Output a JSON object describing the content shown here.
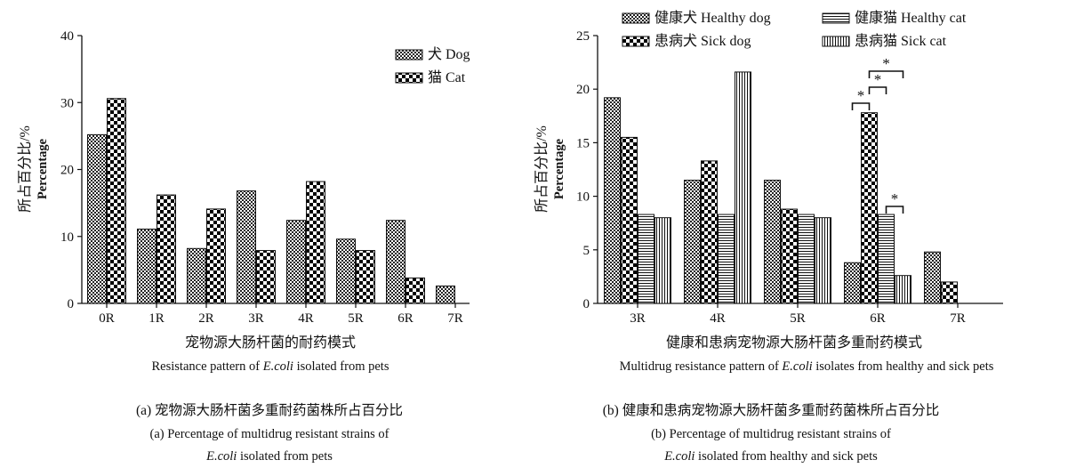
{
  "chart_data": [
    {
      "type": "bar",
      "ylabel_cn": "所占百分比/%",
      "ylabel_en": "Percentage",
      "ylim": [
        0,
        40
      ],
      "yticks": [
        "0",
        "10",
        "20",
        "30",
        "40"
      ],
      "categories": [
        "0R",
        "1R",
        "2R",
        "3R",
        "4R",
        "5R",
        "6R",
        "7R"
      ],
      "series": [
        {
          "name": "犬 Dog",
          "pattern": "checker-fine",
          "values": [
            25.2,
            11.1,
            8.2,
            16.8,
            12.4,
            9.6,
            12.4,
            2.6
          ]
        },
        {
          "name": "猫 Cat",
          "pattern": "checker-bold",
          "values": [
            30.6,
            16.2,
            14.1,
            7.9,
            18.2,
            7.9,
            3.8,
            null
          ]
        }
      ],
      "legend_position": "top-right",
      "xlabel_cn": "宠物源大肠杆菌的耐药模式",
      "xlabel_en_pre": "Resistance pattern of ",
      "xlabel_en_italic": "E.coli",
      "xlabel_en_post": " isolated from pets",
      "caption_cn": "(a) 宠物源大肠杆菌多重耐药菌株所占百分比",
      "caption_en_1": "(a) Percentage of multidrug resistant strains of",
      "caption_en_2_italic": "E.coli",
      "caption_en_2_post": " isolated from pets"
    },
    {
      "type": "bar",
      "ylabel_cn": "所占百分比/%",
      "ylabel_en": "Percentage",
      "ylim": [
        0,
        25
      ],
      "yticks": [
        "0",
        "5",
        "10",
        "15",
        "20",
        "25"
      ],
      "categories": [
        "3R",
        "4R",
        "5R",
        "6R",
        "7R"
      ],
      "series": [
        {
          "name": "健康犬 Healthy dog",
          "pattern": "checker-fine",
          "values": [
            19.2,
            11.5,
            11.5,
            3.8,
            4.8
          ]
        },
        {
          "name": "患病犬 Sick dog",
          "pattern": "checker-bold",
          "values": [
            15.5,
            13.3,
            8.8,
            17.8,
            2.0
          ]
        },
        {
          "name": "健康猫 Healthy cat",
          "pattern": "horizontal",
          "values": [
            8.3,
            8.3,
            8.3,
            8.3,
            null
          ]
        },
        {
          "name": "患病猫 Sick cat",
          "pattern": "vertical",
          "values": [
            8.0,
            21.6,
            8.0,
            2.6,
            null
          ]
        }
      ],
      "legend_position": "top",
      "significance_marker": "*",
      "xlabel_cn": "健康和患病宠物源大肠杆菌多重耐药模式",
      "xlabel_en_pre": "Multidrug resistance pattern of ",
      "xlabel_en_italic": "E.coli",
      "xlabel_en_post": " isolates from healthy and sick pets",
      "caption_cn": "(b) 健康和患病宠物源大肠杆菌多重耐药菌株所占百分比",
      "caption_en_1": "(b) Percentage of multidrug resistant strains of",
      "caption_en_2_italic": "E.coli",
      "caption_en_2_post": " isolated from healthy and sick pets"
    }
  ]
}
